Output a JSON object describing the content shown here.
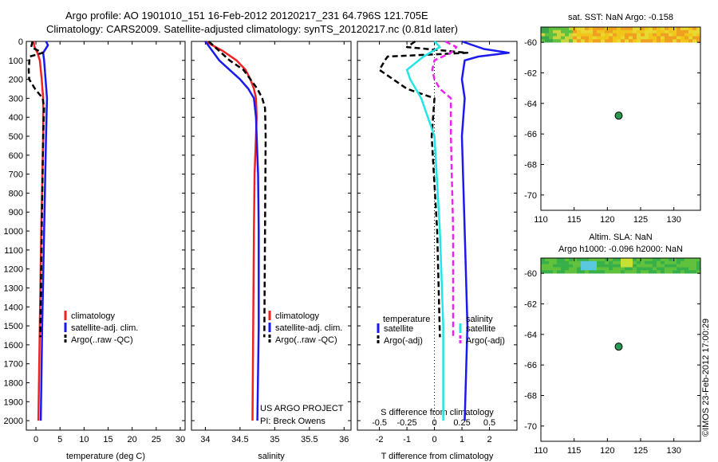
{
  "header": {
    "line1": "Argo profile: AO 1901010_151 16-Feb-2012 20120217_231 64.796S 121.705E",
    "line2": "Climatology: CARS2009. Satellite-adjusted climatology: synTS_20120217.nc (0.81d later)"
  },
  "depth_ticks": [
    "0",
    "100",
    "200",
    "300",
    "400",
    "500",
    "600",
    "700",
    "800",
    "900",
    "1000",
    "1100",
    "1200",
    "1300",
    "1400",
    "1500",
    "1600",
    "1700",
    "1800",
    "1900",
    "2000"
  ],
  "colors": {
    "climatology": "#ee2222",
    "satellite": "#1a1aee",
    "argo": "#000000",
    "sal_sat": "#22e6e6",
    "sal_argo": "#ee22ee"
  },
  "chart_data": [
    {
      "type": "line",
      "name": "temperature",
      "xlabel": "temperature (deg C)",
      "xlim": [
        -2,
        31
      ],
      "ylim": [
        0,
        2050
      ],
      "yinverted": true,
      "xticks": [
        "0",
        "5",
        "10",
        "15",
        "20",
        "25",
        "30"
      ],
      "legend": [
        "climatology",
        "satellite-adj. clim.",
        "Argo(..raw -QC)"
      ],
      "series": [
        {
          "name": "climatology",
          "depth": [
            0,
            30,
            60,
            100,
            200,
            300,
            500,
            1000,
            1500,
            2000
          ],
          "values": [
            -0.5,
            -0.3,
            0.3,
            0.8,
            1.2,
            1.5,
            1.5,
            1.1,
            0.8,
            0.5
          ]
        },
        {
          "name": "satellite-adj. clim.",
          "depth": [
            0,
            20,
            60,
            100,
            200,
            300,
            500,
            1000,
            1500,
            2000
          ],
          "values": [
            2.1,
            2.5,
            1.5,
            1.7,
            2.0,
            2.3,
            2.1,
            1.7,
            1.3,
            1.0
          ]
        },
        {
          "name": "Argo(..raw -QC)",
          "depth": [
            0,
            30,
            60,
            80,
            150,
            200,
            250,
            300,
            350,
            500,
            1000,
            1560
          ],
          "values": [
            -0.7,
            -1.0,
            1.4,
            -1.3,
            -1.5,
            -1.4,
            -0.2,
            1.4,
            1.7,
            1.5,
            1.2,
            0.9
          ]
        }
      ]
    },
    {
      "type": "line",
      "name": "salinity",
      "xlabel": "salinity",
      "xlim": [
        33.8,
        36.1
      ],
      "ylim": [
        0,
        2050
      ],
      "yinverted": true,
      "xticks": [
        "34",
        "34.5",
        "35",
        "35.5",
        "36"
      ],
      "legend": [
        "climatology",
        "satellite-adj. clim.",
        "Argo(..raw -QC)"
      ],
      "annotations": [
        "US ARGO PROJECT",
        "PI: Breck Owens"
      ],
      "series": [
        {
          "name": "climatology",
          "depth": [
            0,
            50,
            100,
            150,
            200,
            250,
            300,
            400,
            500,
            700,
            1000,
            1500,
            2000
          ],
          "values": [
            34.0,
            34.25,
            34.45,
            34.58,
            34.65,
            34.7,
            34.73,
            34.74,
            34.73,
            34.71,
            34.7,
            34.69,
            34.68
          ]
        },
        {
          "name": "satellite-adj. clim.",
          "depth": [
            0,
            50,
            100,
            150,
            200,
            250,
            300,
            400,
            500,
            700,
            1000,
            1500,
            2000
          ],
          "values": [
            34.0,
            34.1,
            34.2,
            34.35,
            34.5,
            34.62,
            34.7,
            34.73,
            34.74,
            34.76,
            34.77,
            34.77,
            34.75
          ]
        },
        {
          "name": "Argo(..raw -QC)",
          "depth": [
            0,
            50,
            100,
            150,
            200,
            250,
            300,
            350,
            500,
            1000,
            1560
          ],
          "values": [
            34.05,
            34.2,
            34.35,
            34.55,
            34.65,
            34.75,
            34.82,
            34.86,
            34.87,
            34.86,
            34.85
          ]
        }
      ]
    },
    {
      "type": "line",
      "name": "difference from climatology",
      "xlabel": "T difference from climatology",
      "xlabel2": "S difference from climatology",
      "xlim": [
        -2.8,
        3.0
      ],
      "x2lim": [
        -0.7,
        0.75
      ],
      "ylim": [
        0,
        2050
      ],
      "yinverted": true,
      "xticks": [
        "-2",
        "-1",
        "0",
        "1",
        "2"
      ],
      "x2ticks": [
        "-0.5",
        "-0.25",
        "0",
        "0.25",
        "0.5"
      ],
      "legend_titles": [
        "temperature",
        "salinity"
      ],
      "legend_t": [
        "satellite",
        "Argo(-adj)"
      ],
      "legend_s": [
        "satellite",
        "Argo(-adj)"
      ],
      "series": [
        {
          "name": "T satellite",
          "depth": [
            0,
            40,
            60,
            80,
            100,
            200,
            300,
            500,
            1000,
            1500,
            2000
          ],
          "values": [
            1.0,
            1.8,
            2.7,
            1.6,
            1.1,
            1.0,
            1.1,
            1.0,
            1.1,
            1.2,
            1.1
          ]
        },
        {
          "name": "T Argo(-adj)",
          "depth": [
            0,
            30,
            60,
            80,
            100,
            150,
            200,
            250,
            300,
            500,
            1000,
            1560
          ],
          "values": [
            -0.7,
            -1.0,
            1.2,
            -1.7,
            -1.8,
            -2.0,
            -1.5,
            -1.0,
            0.0,
            -0.1,
            0.1,
            0.2
          ]
        },
        {
          "name": "S satellite",
          "depth": [
            0,
            30,
            80,
            150,
            200,
            300,
            500,
            1000,
            1500,
            2000
          ],
          "values": [
            0.0,
            0.05,
            -0.1,
            -0.25,
            -0.22,
            -0.12,
            0.0,
            0.05,
            0.08,
            0.08
          ]
        },
        {
          "name": "S Argo(-adj)",
          "depth": [
            0,
            30,
            60,
            100,
            150,
            200,
            250,
            300,
            500,
            1000,
            1560
          ],
          "values": [
            0.1,
            0.2,
            0.15,
            0.0,
            -0.02,
            0.0,
            0.05,
            0.15,
            0.15,
            0.17,
            0.17
          ]
        }
      ]
    },
    {
      "type": "scatter",
      "name": "sat SST map",
      "title": "sat. SST: NaN Argo: -0.158",
      "xlim": [
        110,
        134
      ],
      "ylim": [
        -71,
        -59
      ],
      "xticks": [
        "110",
        "115",
        "120",
        "125",
        "130"
      ],
      "yticks": [
        "-60",
        "-62",
        "-64",
        "-66",
        "-68",
        "-70"
      ],
      "points": [
        {
          "x": 121.7,
          "y": -64.8
        }
      ]
    },
    {
      "type": "scatter",
      "name": "altimetry map",
      "title1": "Altim. SLA: NaN",
      "title2": "Argo h1000: -0.096 h2000: NaN",
      "xlim": [
        110,
        134
      ],
      "ylim": [
        -71,
        -59
      ],
      "xticks": [
        "110",
        "115",
        "120",
        "125",
        "130"
      ],
      "yticks": [
        "-60",
        "-62",
        "-64",
        "-66",
        "-68",
        "-70"
      ],
      "points": [
        {
          "x": 121.7,
          "y": -64.8
        }
      ]
    }
  ],
  "footer": {
    "credit": "©IMOS 23-Feb-2012 17:00:29"
  }
}
